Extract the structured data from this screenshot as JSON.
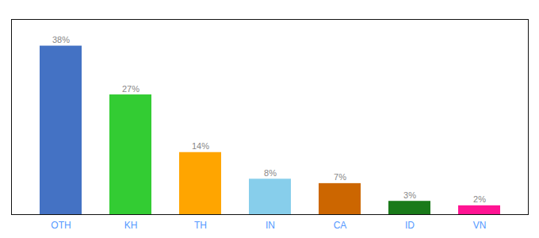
{
  "chart_data": {
    "type": "bar",
    "categories": [
      "OTH",
      "KH",
      "TH",
      "IN",
      "CA",
      "ID",
      "VN"
    ],
    "values": [
      38,
      27,
      14,
      8,
      7,
      3,
      2
    ],
    "value_labels": [
      "38%",
      "27%",
      "14%",
      "8%",
      "7%",
      "3%",
      "2%"
    ],
    "colors": [
      "#4472C4",
      "#33CC33",
      "#FFA500",
      "#87CEEB",
      "#CC6600",
      "#1A7A1A",
      "#FF1493"
    ],
    "ylim": [
      0,
      44
    ],
    "data_labels": true,
    "tick_labels": "x",
    "grid": false
  }
}
